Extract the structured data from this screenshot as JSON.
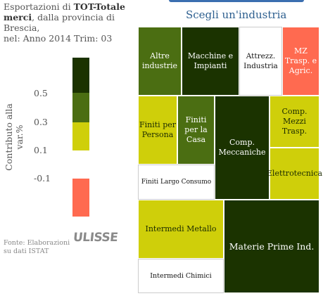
{
  "title": {
    "prefix": "Esportazioni di ",
    "bold": "TOT-Totale merci",
    "suffix": ", dalla provincia di Brescia,",
    "period": "nel: Anno 2014 Trim: 03"
  },
  "heading": "Scegli un'industria",
  "legend": {
    "label": "Contributo alla var.%",
    "ticks": [
      "0.5",
      "0.3",
      "0.1",
      "-0.1"
    ],
    "colors": {
      "dark": "#1b3300",
      "mid": "#4b6e12",
      "lime": "#cfcf0a",
      "white": "#ffffff",
      "red": "#ff6a50"
    }
  },
  "source": {
    "line1": "Fonte: Elaborazioni",
    "line2": "su dati ISTAT"
  },
  "logo": "ULISSE",
  "industries": [
    "Altre industrie",
    "Macchine e Impianti",
    "Attrezz. Industria",
    "MZ Trasp. e Agric.",
    "Finiti per Persona",
    "Finiti per la Casa",
    "Comp. Meccaniche",
    "Comp. Mezzi Trasp.",
    "Finiti Largo Consumo",
    "Elettrotecnica",
    "Intermedi Metallo",
    "Materie Prime Ind.",
    "Intermedi Chimici"
  ]
}
